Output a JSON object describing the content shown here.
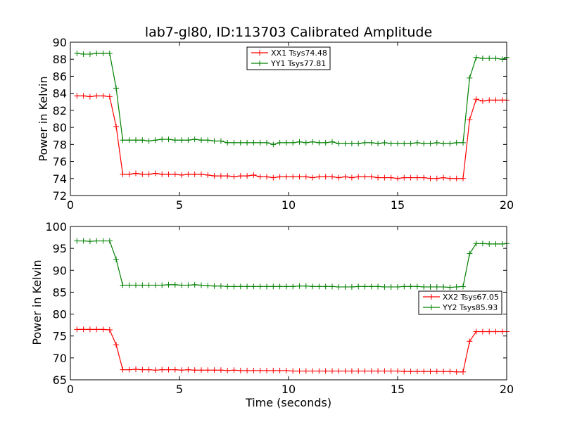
{
  "chart_data": [
    {
      "type": "line",
      "title": "lab7-gl80, ID:113703 Calibrated Amplitude",
      "xlabel": "",
      "ylabel": "Power in Kelvin",
      "xlim": [
        0,
        20
      ],
      "ylim": [
        72,
        90
      ],
      "xticks": [
        0,
        5,
        10,
        15,
        20
      ],
      "yticks": [
        72,
        74,
        76,
        78,
        80,
        82,
        84,
        86,
        88,
        90
      ],
      "grid": false,
      "legend_position": "top-center",
      "x": [
        0.3,
        0.6,
        0.9,
        1.2,
        1.5,
        1.8,
        2.1,
        2.4,
        2.7,
        3.0,
        3.3,
        3.6,
        3.9,
        4.2,
        4.5,
        4.8,
        5.1,
        5.4,
        5.7,
        6.0,
        6.3,
        6.6,
        6.9,
        7.2,
        7.5,
        7.8,
        8.1,
        8.4,
        8.7,
        9.0,
        9.3,
        9.6,
        9.9,
        10.2,
        10.5,
        10.8,
        11.1,
        11.4,
        11.7,
        12.0,
        12.3,
        12.6,
        12.9,
        13.2,
        13.5,
        13.8,
        14.1,
        14.4,
        14.7,
        15.0,
        15.3,
        15.6,
        15.9,
        16.2,
        16.5,
        16.8,
        17.1,
        17.4,
        17.7,
        18.0,
        18.3,
        18.6,
        18.9,
        19.2,
        19.5,
        19.8,
        20.0
      ],
      "series": [
        {
          "name": "XX1 Tsys74.48",
          "color": "#ff0000",
          "values": [
            83.7,
            83.7,
            83.6,
            83.7,
            83.7,
            83.6,
            80.1,
            74.5,
            74.5,
            74.6,
            74.5,
            74.5,
            74.6,
            74.5,
            74.5,
            74.5,
            74.4,
            74.5,
            74.5,
            74.5,
            74.4,
            74.3,
            74.3,
            74.3,
            74.2,
            74.3,
            74.3,
            74.4,
            74.2,
            74.2,
            74.1,
            74.2,
            74.2,
            74.2,
            74.2,
            74.2,
            74.1,
            74.2,
            74.2,
            74.2,
            74.1,
            74.2,
            74.1,
            74.2,
            74.2,
            74.2,
            74.1,
            74.1,
            74.1,
            74.0,
            74.1,
            74.1,
            74.1,
            74.1,
            74.0,
            74.0,
            74.1,
            74.0,
            74.0,
            74.0,
            80.9,
            83.3,
            83.1,
            83.2,
            83.2,
            83.2,
            83.2
          ]
        },
        {
          "name": "YY1 Tsys77.81",
          "color": "#008000",
          "values": [
            88.7,
            88.6,
            88.6,
            88.7,
            88.7,
            88.7,
            84.6,
            78.5,
            78.5,
            78.5,
            78.5,
            78.4,
            78.5,
            78.6,
            78.6,
            78.5,
            78.5,
            78.5,
            78.6,
            78.5,
            78.5,
            78.4,
            78.4,
            78.2,
            78.2,
            78.2,
            78.2,
            78.2,
            78.2,
            78.2,
            78.0,
            78.2,
            78.2,
            78.2,
            78.3,
            78.2,
            78.3,
            78.2,
            78.2,
            78.3,
            78.1,
            78.1,
            78.1,
            78.1,
            78.2,
            78.2,
            78.1,
            78.2,
            78.1,
            78.1,
            78.1,
            78.1,
            78.2,
            78.1,
            78.1,
            78.2,
            78.1,
            78.1,
            78.2,
            78.2,
            85.8,
            88.2,
            88.1,
            88.1,
            88.1,
            88.0,
            88.2
          ]
        }
      ]
    },
    {
      "type": "line",
      "title": "",
      "xlabel": "Time (seconds)",
      "ylabel": "Power in Kelvin",
      "xlim": [
        0,
        20
      ],
      "ylim": [
        65,
        100
      ],
      "xticks": [
        0,
        5,
        10,
        15,
        20
      ],
      "yticks": [
        65,
        70,
        75,
        80,
        85,
        90,
        95,
        100
      ],
      "grid": false,
      "legend_position": "center-right",
      "x": [
        0.3,
        0.6,
        0.9,
        1.2,
        1.5,
        1.8,
        2.1,
        2.4,
        2.7,
        3.0,
        3.3,
        3.6,
        3.9,
        4.2,
        4.5,
        4.8,
        5.1,
        5.4,
        5.7,
        6.0,
        6.3,
        6.6,
        6.9,
        7.2,
        7.5,
        7.8,
        8.1,
        8.4,
        8.7,
        9.0,
        9.3,
        9.6,
        9.9,
        10.2,
        10.5,
        10.8,
        11.1,
        11.4,
        11.7,
        12.0,
        12.3,
        12.6,
        12.9,
        13.2,
        13.5,
        13.8,
        14.1,
        14.4,
        14.7,
        15.0,
        15.3,
        15.6,
        15.9,
        16.2,
        16.5,
        16.8,
        17.1,
        17.4,
        17.7,
        18.0,
        18.3,
        18.6,
        18.9,
        19.2,
        19.5,
        19.8,
        20.0
      ],
      "series": [
        {
          "name": "XX2 Tsys67.05",
          "color": "#ff0000",
          "values": [
            76.5,
            76.5,
            76.5,
            76.5,
            76.5,
            76.4,
            73.0,
            67.3,
            67.3,
            67.4,
            67.3,
            67.3,
            67.2,
            67.3,
            67.3,
            67.3,
            67.2,
            67.3,
            67.2,
            67.2,
            67.2,
            67.2,
            67.2,
            67.1,
            67.2,
            67.1,
            67.1,
            67.1,
            67.1,
            67.1,
            67.1,
            67.1,
            67.1,
            67.0,
            67.0,
            67.0,
            67.0,
            67.0,
            67.0,
            67.0,
            67.0,
            67.0,
            67.0,
            67.0,
            67.0,
            67.0,
            67.0,
            67.0,
            67.0,
            67.0,
            66.9,
            66.9,
            66.9,
            66.9,
            66.9,
            66.9,
            66.9,
            66.9,
            66.8,
            66.8,
            73.8,
            76.0,
            76.0,
            76.0,
            76.0,
            76.0,
            76.0
          ]
        },
        {
          "name": "YY2 Tsys85.93",
          "color": "#008000",
          "values": [
            96.7,
            96.7,
            96.6,
            96.7,
            96.7,
            96.7,
            92.5,
            86.6,
            86.6,
            86.6,
            86.6,
            86.6,
            86.6,
            86.6,
            86.7,
            86.7,
            86.6,
            86.6,
            86.7,
            86.6,
            86.5,
            86.4,
            86.4,
            86.3,
            86.3,
            86.3,
            86.3,
            86.3,
            86.3,
            86.3,
            86.3,
            86.3,
            86.3,
            86.3,
            86.4,
            86.4,
            86.3,
            86.3,
            86.3,
            86.3,
            86.2,
            86.2,
            86.2,
            86.3,
            86.3,
            86.3,
            86.3,
            86.2,
            86.2,
            86.2,
            86.3,
            86.3,
            86.3,
            86.2,
            86.2,
            86.2,
            86.2,
            86.1,
            86.2,
            86.3,
            93.8,
            96.1,
            96.1,
            96.0,
            96.0,
            96.0,
            96.1
          ]
        }
      ]
    }
  ]
}
